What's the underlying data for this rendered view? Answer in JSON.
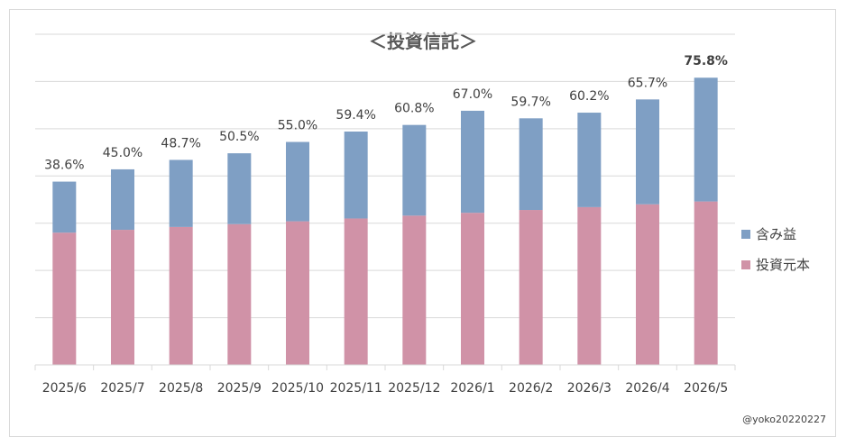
{
  "chart_data": {
    "type": "bar",
    "stacked": true,
    "title": "＜投資信託＞",
    "categories": [
      "2025/6",
      "2025/7",
      "2025/8",
      "2025/9",
      "2025/10",
      "2025/11",
      "2025/12",
      "2026/1",
      "2026/2",
      "2026/3",
      "2026/4",
      "2026/5"
    ],
    "series": [
      {
        "name": "投資元本",
        "color": "#d092a7",
        "values": [
          140,
          143,
          146,
          149,
          152,
          155,
          158,
          161,
          164,
          167,
          170,
          173
        ]
      },
      {
        "name": "含み益",
        "color": "#7f9fc4",
        "values": [
          54,
          64,
          71,
          75,
          84,
          92,
          96,
          108,
          97,
          100,
          111,
          131
        ]
      }
    ],
    "data_labels": [
      "38.6%",
      "45.0%",
      "48.7%",
      "50.5%",
      "55.0%",
      "59.4%",
      "60.8%",
      "67.0%",
      "59.7%",
      "60.2%",
      "65.7%",
      "75.8%"
    ],
    "highlight_last_label": true,
    "ylim": [
      0,
      350
    ],
    "y_gridline_step": 50,
    "y_tick_labels_shown": false,
    "grid": true,
    "legend_position": "right",
    "gridline_color": "#d9d9d9"
  },
  "credit": "@yoko20220227"
}
